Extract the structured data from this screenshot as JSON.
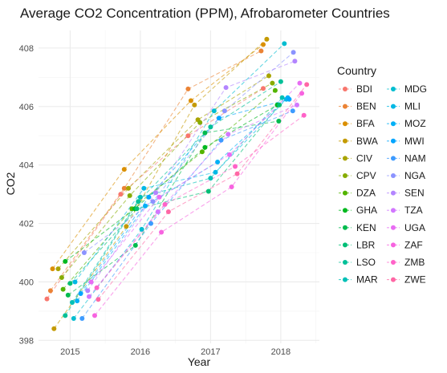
{
  "chart_data": {
    "type": "scatter",
    "title": "Average CO2 Concentration (PPM), Afrobarometer Countries",
    "xlabel": "Year",
    "ylabel": "CO2",
    "xlim": [
      2014.55,
      2018.55
    ],
    "ylim": [
      397.9,
      408.6
    ],
    "x_ticks": [
      2015,
      2016,
      2017,
      2018
    ],
    "x_tick_labels": [
      "2015",
      "2016",
      "2017",
      "2018"
    ],
    "y_ticks": [
      398,
      400,
      402,
      404,
      406,
      408
    ],
    "y_tick_labels": [
      "398",
      "400",
      "402",
      "404",
      "406",
      "408"
    ],
    "grid": true,
    "line_style": "dashed",
    "legend": {
      "title": "Country",
      "placement": "right",
      "columns": 2
    },
    "series": [
      {
        "name": "BDI",
        "color": "#F8766D",
        "points": [
          [
            2014.67,
            399.42
          ],
          [
            2015.72,
            403.0
          ],
          [
            2016.68,
            405.0
          ],
          [
            2017.75,
            406.62
          ]
        ]
      },
      {
        "name": "BEN",
        "color": "#EB8335",
        "points": [
          [
            2014.72,
            399.7
          ],
          [
            2015.77,
            403.2
          ],
          [
            2016.68,
            406.6
          ],
          [
            2017.72,
            407.9
          ]
        ]
      },
      {
        "name": "BFA",
        "color": "#DA8F00",
        "points": [
          [
            2014.75,
            400.45
          ],
          [
            2015.77,
            403.85
          ],
          [
            2016.72,
            406.2
          ],
          [
            2017.75,
            408.12
          ]
        ]
      },
      {
        "name": "BWA",
        "color": "#C49A00",
        "points": [
          [
            2014.77,
            398.4
          ],
          [
            2015.8,
            401.9
          ],
          [
            2016.77,
            406.05
          ],
          [
            2017.8,
            408.3
          ]
        ]
      },
      {
        "name": "CIV",
        "color": "#A9A400",
        "points": [
          [
            2014.83,
            400.45
          ],
          [
            2015.83,
            403.2
          ],
          [
            2016.82,
            405.55
          ],
          [
            2017.83,
            407.05
          ]
        ]
      },
      {
        "name": "CPV",
        "color": "#86AC00",
        "points": [
          [
            2014.88,
            400.15
          ],
          [
            2015.85,
            402.95
          ],
          [
            2016.85,
            405.45
          ],
          [
            2017.88,
            406.8
          ]
        ]
      },
      {
        "name": "DZA",
        "color": "#53B400",
        "points": [
          [
            2014.9,
            399.75
          ],
          [
            2015.88,
            402.5
          ],
          [
            2016.88,
            404.45
          ],
          [
            2017.92,
            406.55
          ]
        ]
      },
      {
        "name": "GHA",
        "color": "#00B81F",
        "points": [
          [
            2014.93,
            400.7
          ],
          [
            2015.92,
            402.5
          ],
          [
            2016.92,
            404.6
          ],
          [
            2017.95,
            406.05
          ]
        ]
      },
      {
        "name": "KEN",
        "color": "#00BB4E",
        "points": [
          [
            2014.97,
            399.55
          ],
          [
            2015.93,
            401.25
          ],
          [
            2016.92,
            405.1
          ],
          [
            2017.97,
            405.5
          ]
        ]
      },
      {
        "name": "LBR",
        "color": "#00BE76",
        "points": [
          [
            2015.0,
            399.95
          ],
          [
            2015.95,
            402.5
          ],
          [
            2016.97,
            403.1
          ],
          [
            2017.98,
            406.05
          ]
        ]
      },
      {
        "name": "LSO",
        "color": "#00C098",
        "points": [
          [
            2014.93,
            398.85
          ],
          [
            2015.97,
            402.75
          ],
          [
            2017.0,
            405.3
          ],
          [
            2018.0,
            406.85
          ]
        ]
      },
      {
        "name": "MAR",
        "color": "#00C0B6",
        "points": [
          [
            2015.03,
            399.3
          ],
          [
            2016.0,
            402.9
          ],
          [
            2017.0,
            403.55
          ],
          [
            2018.02,
            406.3
          ]
        ]
      },
      {
        "name": "MDG",
        "color": "#00BDD0",
        "points": [
          [
            2015.05,
            398.75
          ],
          [
            2016.02,
            401.8
          ],
          [
            2017.05,
            405.85
          ],
          [
            2018.05,
            408.15
          ]
        ]
      },
      {
        "name": "MLI",
        "color": "#00B8E5",
        "points": [
          [
            2015.07,
            400.0
          ],
          [
            2016.05,
            403.2
          ],
          [
            2017.07,
            403.75
          ],
          [
            2018.08,
            406.25
          ]
        ]
      },
      {
        "name": "MOZ",
        "color": "#00B0F6",
        "points": [
          [
            2015.1,
            399.35
          ],
          [
            2016.07,
            402.6
          ],
          [
            2017.1,
            404.1
          ],
          [
            2018.1,
            406.3
          ]
        ]
      },
      {
        "name": "MWI",
        "color": "#00A5FF",
        "points": [
          [
            2015.15,
            399.6
          ],
          [
            2016.12,
            402.9
          ],
          [
            2017.12,
            405.6
          ],
          [
            2018.12,
            406.25
          ]
        ]
      },
      {
        "name": "NAM",
        "color": "#3D9BFF",
        "points": [
          [
            2015.17,
            398.75
          ],
          [
            2016.15,
            402.0
          ],
          [
            2017.15,
            404.85
          ],
          [
            2018.17,
            405.85
          ]
        ]
      },
      {
        "name": "NGA",
        "color": "#8B93FF",
        "points": [
          [
            2015.2,
            401.0
          ],
          [
            2016.18,
            402.75
          ],
          [
            2017.2,
            405.85
          ],
          [
            2018.18,
            407.85
          ]
        ]
      },
      {
        "name": "SEN",
        "color": "#B385FF",
        "points": [
          [
            2015.25,
            399.7
          ],
          [
            2016.22,
            403.05
          ],
          [
            2017.22,
            406.65
          ],
          [
            2018.2,
            407.55
          ]
        ]
      },
      {
        "name": "TZA",
        "color": "#D277FF",
        "points": [
          [
            2015.27,
            399.5
          ],
          [
            2016.25,
            402.4
          ],
          [
            2017.25,
            405.05
          ],
          [
            2018.23,
            406.05
          ]
        ]
      },
      {
        "name": "UGA",
        "color": "#E86CF3",
        "points": [
          [
            2015.3,
            400.0
          ],
          [
            2016.27,
            402.9
          ],
          [
            2017.27,
            404.35
          ],
          [
            2018.27,
            406.8
          ]
        ]
      },
      {
        "name": "ZAF",
        "color": "#F763E0",
        "points": [
          [
            2015.35,
            398.85
          ],
          [
            2016.3,
            401.7
          ],
          [
            2017.3,
            403.25
          ],
          [
            2018.3,
            406.45
          ]
        ]
      },
      {
        "name": "ZMB",
        "color": "#FF62C8",
        "points": [
          [
            2015.38,
            399.8
          ],
          [
            2016.35,
            402.65
          ],
          [
            2017.35,
            403.95
          ],
          [
            2018.33,
            405.7
          ]
        ]
      },
      {
        "name": "ZWE",
        "color": "#FF67A5",
        "points": [
          [
            2015.4,
            399.4
          ],
          [
            2016.4,
            402.4
          ],
          [
            2017.38,
            403.7
          ],
          [
            2018.37,
            406.75
          ]
        ]
      }
    ]
  }
}
